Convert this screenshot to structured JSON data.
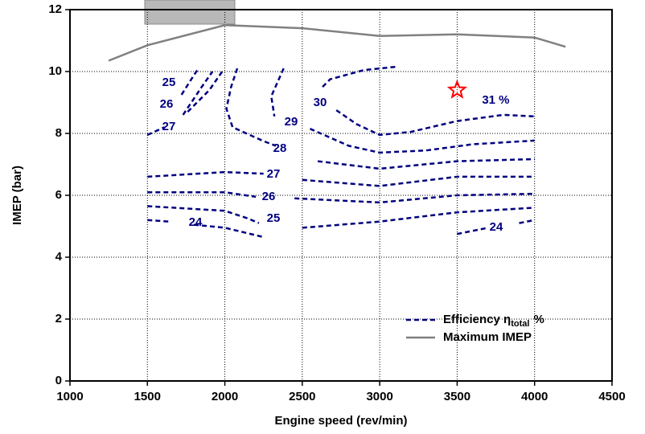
{
  "chart_data": {
    "type": "contour",
    "xlabel": "Engine speed (rev/min)",
    "ylabel": "IMEP (bar)",
    "xlim": [
      1000,
      4500
    ],
    "ylim": [
      0,
      12
    ],
    "xticks": [
      1000,
      1500,
      2000,
      2500,
      3000,
      3500,
      4000,
      4500
    ],
    "yticks": [
      0,
      2,
      4,
      6,
      8,
      10,
      12
    ],
    "grid": true,
    "legend": "lower right",
    "series": [
      {
        "name": "Efficiency η",
        "name_subscript": "total",
        "name_suffix": "%",
        "color": "#000080",
        "contours": [
          {
            "label": "25",
            "x": [
              1720,
              1790,
              1830
            ],
            "values": [
              9.25,
              9.8,
              10.1
            ]
          },
          {
            "label": "26",
            "x": [
              1730,
              1850,
              1920
            ],
            "values": [
              8.6,
              9.5,
              10.0
            ]
          },
          {
            "label": "27",
            "x": [
              1500,
              1610,
              null,
              1760,
              1900,
              1990
            ],
            "values": [
              7.95,
              8.2,
              null,
              8.7,
              9.4,
              10.05
            ]
          },
          {
            "label": "30",
            "x": [
              3100,
              2900,
              2680,
              2630,
              null,
              2720,
              2850,
              3000,
              3200,
              3500,
              3800,
              4000
            ],
            "values": [
              10.15,
              10.05,
              9.75,
              9.5,
              null,
              8.75,
              8.3,
              7.95,
              8.05,
              8.4,
              8.6,
              8.55
            ]
          },
          {
            "label": "29",
            "x": [
              2380,
              2300,
              2320,
              null,
              2550,
              2800,
              3000,
              3300,
              3600,
              4000
            ],
            "values": [
              10.1,
              9.2,
              8.55,
              null,
              8.15,
              7.6,
              7.38,
              7.45,
              7.65,
              7.77
            ]
          },
          {
            "label": "28",
            "x": [
              2080,
              2040,
              2010,
              2050,
              2250,
              2330,
              null,
              2600,
              3000,
              3500,
              4000
            ],
            "values": [
              10.1,
              9.5,
              8.8,
              8.2,
              7.75,
              7.6,
              null,
              7.1,
              6.86,
              7.1,
              7.17
            ]
          },
          {
            "label": "27",
            "x": [
              1500,
              2000,
              2250,
              null,
              2500,
              3000,
              3500,
              4000
            ],
            "values": [
              6.6,
              6.75,
              6.7,
              null,
              6.5,
              6.3,
              6.6,
              6.6
            ]
          },
          {
            "label": "26",
            "x": [
              1500,
              2000,
              2200,
              null,
              2450,
              3000,
              3500,
              4000
            ],
            "values": [
              6.1,
              6.1,
              5.95,
              null,
              5.9,
              5.77,
              6.0,
              6.05
            ]
          },
          {
            "label": "25",
            "x": [
              1500,
              2000,
              2150,
              2220,
              null,
              2500,
              3000,
              3500,
              4000
            ],
            "values": [
              5.65,
              5.5,
              5.25,
              5.1,
              null,
              4.95,
              5.15,
              5.45,
              5.6
            ]
          },
          {
            "label": "24",
            "x": [
              1500,
              1640,
              null,
              1800,
              2000,
              2250
            ],
            "values": [
              5.2,
              5.15,
              null,
              5.05,
              4.95,
              4.65
            ]
          },
          {
            "label": "24",
            "x": [
              3500,
              3700,
              null,
              3900,
              4000
            ],
            "values": [
              4.75,
              4.95,
              null,
              5.1,
              5.2
            ]
          }
        ]
      },
      {
        "name": "Maximum IMEP",
        "color": "#808080",
        "x": [
          1250,
          1500,
          2000,
          2500,
          3000,
          3500,
          4000,
          4200
        ],
        "values": [
          10.35,
          10.85,
          11.5,
          11.4,
          11.15,
          11.2,
          11.1,
          10.8
        ]
      }
    ],
    "maximum": {
      "label": "31 %",
      "x": 3500,
      "y": 9.4,
      "color": "#ff0000"
    }
  }
}
